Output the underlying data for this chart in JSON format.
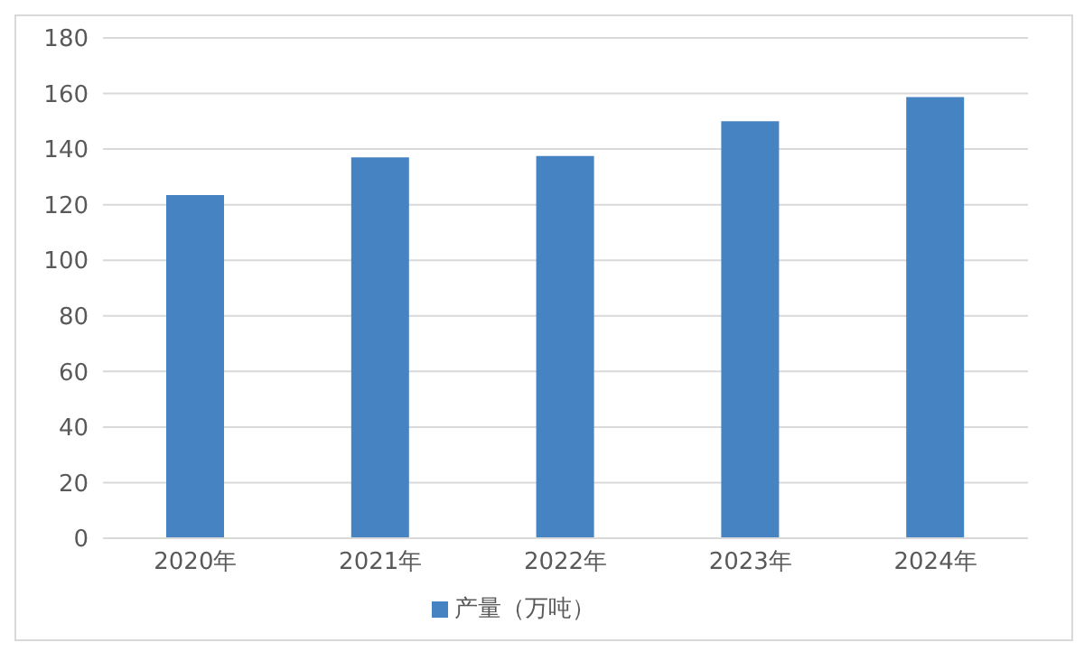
{
  "chart_data": {
    "type": "bar",
    "categories": [
      "2020年",
      "2021年",
      "2022年",
      "2023年",
      "2024年"
    ],
    "series": [
      {
        "name": "产量（万吨）",
        "color": "#4683c2",
        "values": [
          123.5,
          137,
          137.5,
          150,
          158.7
        ]
      }
    ],
    "ylim": [
      0,
      180
    ],
    "yticks": [
      0,
      20,
      40,
      60,
      80,
      100,
      120,
      140,
      160,
      180
    ],
    "grid": "y",
    "legend": "bottom"
  }
}
